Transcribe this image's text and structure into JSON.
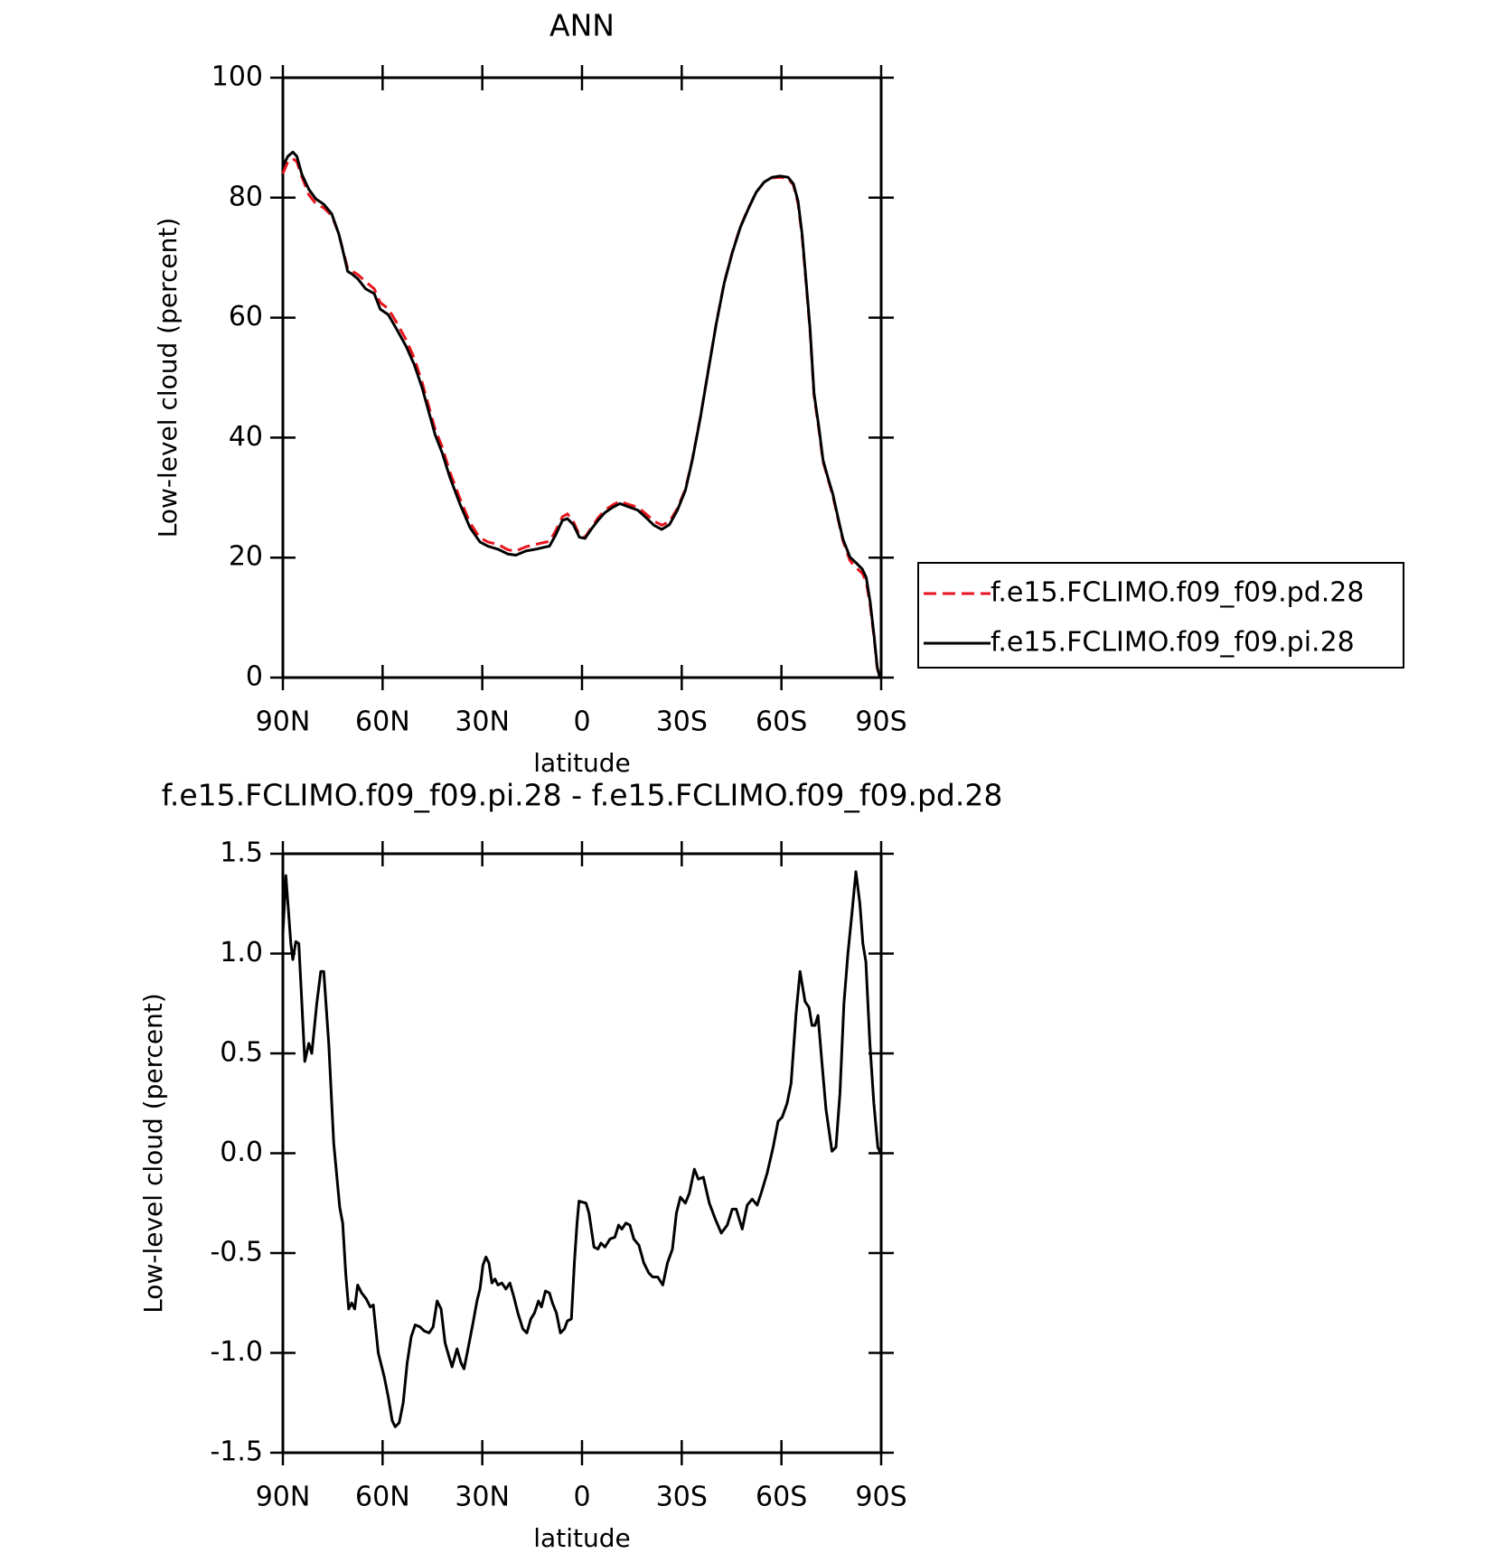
{
  "chart_data": [
    {
      "type": "line",
      "title": "ANN",
      "xlabel": "latitude",
      "ylabel": "Low-level cloud (percent)",
      "xlim": [
        90,
        -90
      ],
      "xticks": [
        {
          "value": 90,
          "label": "90N"
        },
        {
          "value": 60,
          "label": "60N"
        },
        {
          "value": 30,
          "label": "30N"
        },
        0,
        {
          "value": -30,
          "label": "30S"
        },
        {
          "value": -60,
          "label": "60S"
        },
        {
          "value": -90,
          "label": "90S"
        }
      ],
      "ylim": [
        0,
        100
      ],
      "yticks": [
        0,
        20,
        40,
        60,
        80,
        100
      ],
      "legend": "outside-right",
      "x": [
        90,
        88.5,
        87.0,
        85.8,
        84.3,
        82.2,
        80.1,
        77.7,
        75.3,
        73.2,
        71.7,
        70.5,
        69.3,
        67.5,
        65.1,
        62.5,
        60.7,
        58.3,
        55.9,
        52.9,
        50.5,
        48.1,
        46.0,
        44.2,
        42.1,
        39.7,
        36.7,
        33.7,
        30.7,
        28.3,
        25.3,
        22.3,
        19.9,
        16.9,
        13.9,
        11.6,
        9.8,
        8.0,
        5.9,
        4.4,
        2.6,
        0.8,
        -0.9,
        -3.0,
        -4.8,
        -6.9,
        -9.3,
        -11.4,
        -13.8,
        -16.8,
        -19.2,
        -21.6,
        -24.0,
        -26.3,
        -28.7,
        -31.1,
        -33.2,
        -35.6,
        -38.0,
        -40.4,
        -42.8,
        -45.2,
        -47.6,
        -50.0,
        -52.4,
        -54.8,
        -57.2,
        -59.6,
        -62.0,
        -63.6,
        -65.0,
        -66.2,
        -67.4,
        -68.6,
        -69.8,
        -71.3,
        -72.5,
        -74.0,
        -75.5,
        -77.0,
        -78.5,
        -80.6,
        -82.5,
        -84.3,
        -85.5,
        -86.7,
        -87.9,
        -88.8,
        -89.6
      ],
      "series": [
        {
          "name": "f.e15.FCLIMO.f09_f09.pd.28",
          "color": "#e8141c",
          "line_style": "dashed",
          "values": [
            84.0,
            86.0,
            86.5,
            86.0,
            83.5,
            80.5,
            79.0,
            78.3,
            77.0,
            74.0,
            70.8,
            68.2,
            67.8,
            67.2,
            66.0,
            64.8,
            62.5,
            61.5,
            59.3,
            56.3,
            53.3,
            49.2,
            45.0,
            41.4,
            38.5,
            34.2,
            29.8,
            25.8,
            23.3,
            22.6,
            22.2,
            21.3,
            21.1,
            21.8,
            22.2,
            22.5,
            22.7,
            24.4,
            26.8,
            27.3,
            26.0,
            23.8,
            23.4,
            25.1,
            26.6,
            27.9,
            28.8,
            29.4,
            28.9,
            28.4,
            27.3,
            26.1,
            25.4,
            26.0,
            28.2,
            31.4,
            36.4,
            43.4,
            51.3,
            59.1,
            65.9,
            70.9,
            75.1,
            78.2,
            80.9,
            82.6,
            83.3,
            83.4,
            83.2,
            82.1,
            79.0,
            73.6,
            65.8,
            57.8,
            47.0,
            41.2,
            36.0,
            33.1,
            30.2,
            26.5,
            22.8,
            19.5,
            18.3,
            17.4,
            16.0,
            12.0,
            6.5,
            1.6,
            0
          ]
        },
        {
          "name": "f.e15.FCLIMO.f09_f09.pi.28",
          "color": "#000000",
          "line_style": "solid",
          "values": [
            85.2,
            86.9,
            87.6,
            86.9,
            83.9,
            81.4,
            79.8,
            78.9,
            77.3,
            74.0,
            70.6,
            67.7,
            67.3,
            66.5,
            64.8,
            64.0,
            61.4,
            60.5,
            58.2,
            55.2,
            52.2,
            48.3,
            44.1,
            40.5,
            37.5,
            33.3,
            28.9,
            25.0,
            22.6,
            21.9,
            21.4,
            20.6,
            20.4,
            21.1,
            21.4,
            21.7,
            21.9,
            23.7,
            26.2,
            26.5,
            25.5,
            23.4,
            23.2,
            24.9,
            26.2,
            27.5,
            28.4,
            29.0,
            28.5,
            27.9,
            26.7,
            25.4,
            24.7,
            25.5,
            27.9,
            31.2,
            36.3,
            43.3,
            51.2,
            59.0,
            65.8,
            70.8,
            75.0,
            78.1,
            80.9,
            82.6,
            83.4,
            83.6,
            83.4,
            82.3,
            79.4,
            74.0,
            66.2,
            58.2,
            47.4,
            41.6,
            36.3,
            33.3,
            30.5,
            26.7,
            23.1,
            20.1,
            19.1,
            18.1,
            16.7,
            12.6,
            6.8,
            1.8,
            0
          ]
        }
      ]
    },
    {
      "type": "line",
      "title": "f.e15.FCLIMO.f09_f09.pi.28 - f.e15.FCLIMO.f09_f09.pd.28",
      "xlabel": "latitude",
      "ylabel": "Low-level cloud (percent)",
      "xlim": [
        90,
        -90
      ],
      "xticks": [
        {
          "value": 90,
          "label": "90N"
        },
        {
          "value": 60,
          "label": "60N"
        },
        {
          "value": 30,
          "label": "30N"
        },
        0,
        {
          "value": -30,
          "label": "30S"
        },
        {
          "value": -60,
          "label": "60S"
        },
        {
          "value": -90,
          "label": "90S"
        }
      ],
      "ylim": [
        -1.5,
        1.5
      ],
      "yticks": [
        -1.5,
        {
          "value": -1,
          "label": "-1.0"
        },
        -0.5,
        {
          "value": 0,
          "label": "0.0"
        },
        0.5,
        {
          "value": 1,
          "label": "1.0"
        },
        1.5
      ],
      "color": "#000000",
      "x": [
        90,
        89.1,
        87.6,
        87.0,
        86.1,
        85.2,
        83.4,
        82.2,
        81.3,
        79.8,
        78.6,
        77.7,
        76.2,
        74.7,
        72.9,
        72.0,
        71.1,
        70.2,
        69.3,
        68.4,
        67.5,
        66.3,
        64.9,
        63.7,
        62.8,
        61.3,
        59.5,
        58.3,
        57.1,
        56.2,
        55.0,
        53.8,
        52.6,
        51.4,
        50.2,
        48.7,
        47.5,
        46.0,
        44.8,
        43.6,
        42.4,
        41.2,
        40.0,
        39.1,
        37.6,
        36.4,
        35.5,
        34.3,
        32.8,
        31.6,
        30.7,
        29.8,
        28.9,
        28.0,
        27.1,
        26.2,
        25.3,
        24.1,
        22.9,
        21.7,
        20.5,
        19.3,
        17.8,
        16.6,
        15.4,
        14.3,
        13.1,
        12.2,
        11.0,
        9.8,
        8.9,
        7.7,
        6.5,
        5.3,
        4.4,
        3.2,
        2.3,
        1.5,
        0.9,
        -1.2,
        -2.1,
        -3.6,
        -4.8,
        -5.7,
        -6.9,
        -8.4,
        -9.9,
        -11.0,
        -12.0,
        -13.2,
        -14.4,
        -15.6,
        -17.1,
        -18.6,
        -20.1,
        -21.3,
        -22.8,
        -24.3,
        -25.7,
        -27.2,
        -28.4,
        -29.6,
        -31.1,
        -32.3,
        -33.8,
        -35.0,
        -36.5,
        -38.3,
        -40.1,
        -41.9,
        -43.7,
        -45.2,
        -46.4,
        -48.2,
        -49.7,
        -51.2,
        -52.7,
        -53.9,
        -55.7,
        -57.5,
        -59.0,
        -60.2,
        -61.7,
        -62.9,
        -64.4,
        -65.6,
        -67.1,
        -68.3,
        -69.2,
        -70.1,
        -71.0,
        -72.2,
        -73.4,
        -75.2,
        -76.4,
        -77.6,
        -78.8,
        -80.0,
        -81.2,
        -82.4,
        -83.6,
        -84.5,
        -85.4,
        -86.6,
        -87.8,
        -89.0,
        -89.8
      ],
      "values": [
        1.1,
        1.39,
        1.05,
        0.97,
        1.06,
        1.05,
        0.46,
        0.55,
        0.5,
        0.75,
        0.91,
        0.91,
        0.55,
        0.05,
        -0.27,
        -0.35,
        -0.6,
        -0.78,
        -0.75,
        -0.78,
        -0.66,
        -0.7,
        -0.73,
        -0.77,
        -0.76,
        -1.0,
        -1.12,
        -1.22,
        -1.34,
        -1.37,
        -1.35,
        -1.25,
        -1.05,
        -0.92,
        -0.86,
        -0.87,
        -0.89,
        -0.9,
        -0.87,
        -0.74,
        -0.78,
        -0.95,
        -1.02,
        -1.07,
        -0.98,
        -1.05,
        -1.08,
        -0.98,
        -0.85,
        -0.74,
        -0.68,
        -0.56,
        -0.52,
        -0.55,
        -0.65,
        -0.63,
        -0.66,
        -0.65,
        -0.68,
        -0.65,
        -0.72,
        -0.8,
        -0.88,
        -0.9,
        -0.83,
        -0.8,
        -0.74,
        -0.77,
        -0.69,
        -0.7,
        -0.75,
        -0.8,
        -0.9,
        -0.88,
        -0.84,
        -0.83,
        -0.55,
        -0.35,
        -0.24,
        -0.25,
        -0.3,
        -0.47,
        -0.48,
        -0.45,
        -0.47,
        -0.43,
        -0.42,
        -0.36,
        -0.38,
        -0.35,
        -0.36,
        -0.43,
        -0.46,
        -0.55,
        -0.6,
        -0.62,
        -0.62,
        -0.66,
        -0.55,
        -0.48,
        -0.3,
        -0.22,
        -0.25,
        -0.2,
        -0.08,
        -0.13,
        -0.12,
        -0.25,
        -0.33,
        -0.4,
        -0.36,
        -0.28,
        -0.28,
        -0.38,
        -0.26,
        -0.23,
        -0.26,
        -0.2,
        -0.1,
        0.03,
        0.16,
        0.18,
        0.25,
        0.35,
        0.7,
        0.91,
        0.76,
        0.73,
        0.64,
        0.64,
        0.69,
        0.45,
        0.22,
        0.01,
        0.03,
        0.3,
        0.75,
        1.0,
        1.2,
        1.41,
        1.25,
        1.05,
        0.96,
        0.55,
        0.25,
        0.03,
        0.0
      ]
    }
  ]
}
